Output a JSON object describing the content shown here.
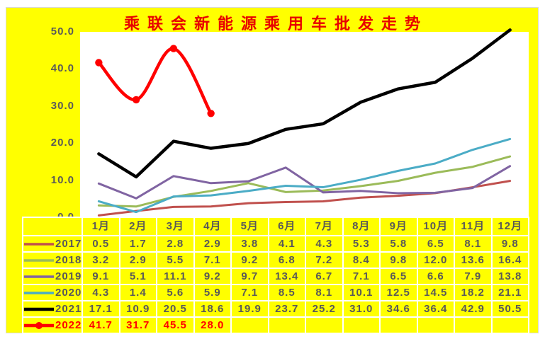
{
  "colors": {
    "background": "#ffff00",
    "plot_background": "#ffffff",
    "grid_gap": "#ffffff",
    "text": "#595959",
    "title": "#e80000",
    "accent_red": "#ff0000"
  },
  "chart_data": {
    "type": "line",
    "title": "乘联会新能源乘用车批发走势",
    "xlabel": "",
    "ylabel": "",
    "grid": false,
    "legend_position": "left-of-table-rows",
    "ylim": [
      0,
      50
    ],
    "yticks": [
      "50.0",
      "40.0",
      "30.0",
      "20.0",
      "10.0",
      "0.0"
    ],
    "categories": [
      "1月",
      "2月",
      "3月",
      "4月",
      "5月",
      "6月",
      "7月",
      "8月",
      "9月",
      "10月",
      "11月",
      "12月"
    ],
    "series": [
      {
        "name": "2017",
        "color": "#c0504d",
        "thick": false,
        "marker": false,
        "smooth": false,
        "values": [
          0.5,
          1.7,
          2.8,
          2.9,
          3.8,
          4.1,
          4.3,
          5.3,
          5.8,
          6.5,
          8.1,
          9.8
        ]
      },
      {
        "name": "2018",
        "color": "#9bbb59",
        "thick": false,
        "marker": false,
        "smooth": false,
        "values": [
          3.2,
          2.9,
          5.5,
          7.1,
          9.2,
          6.8,
          7.2,
          8.4,
          9.8,
          12.0,
          13.6,
          16.4
        ]
      },
      {
        "name": "2019",
        "color": "#8064a2",
        "thick": false,
        "marker": false,
        "smooth": false,
        "values": [
          9.1,
          5.1,
          11.1,
          9.2,
          9.7,
          13.4,
          6.7,
          7.1,
          6.5,
          6.6,
          7.9,
          13.8
        ]
      },
      {
        "name": "2020",
        "color": "#4bacc6",
        "thick": false,
        "marker": false,
        "smooth": false,
        "values": [
          4.3,
          1.4,
          5.6,
          5.9,
          7.1,
          8.5,
          8.1,
          10.1,
          12.5,
          14.5,
          18.2,
          21.1
        ]
      },
      {
        "name": "2021",
        "color": "#000000",
        "thick": true,
        "marker": false,
        "smooth": false,
        "values": [
          17.1,
          10.9,
          20.5,
          18.6,
          19.9,
          23.7,
          25.2,
          31.0,
          34.6,
          36.4,
          42.9,
          50.5
        ]
      },
      {
        "name": "2022",
        "color": "#ff0000",
        "thick": true,
        "marker": true,
        "smooth": true,
        "text_color": "#ff0000",
        "values": [
          41.7,
          31.7,
          45.5,
          28.0,
          null,
          null,
          null,
          null,
          null,
          null,
          null,
          null
        ]
      }
    ]
  }
}
